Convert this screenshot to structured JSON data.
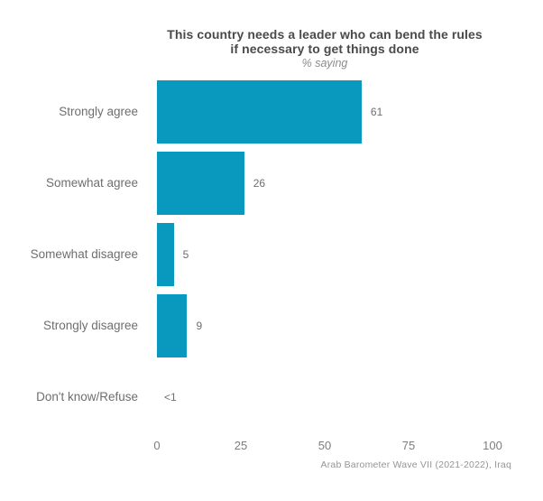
{
  "chart_data": {
    "type": "bar",
    "orientation": "horizontal",
    "title": "This country needs a leader who can bend the rules if necessary to get things done",
    "title_lines": [
      "This country needs a leader who can bend the rules",
      "if necessary to get things done"
    ],
    "subtitle": "% saying",
    "categories": [
      "Strongly agree",
      "Somewhat agree",
      "Somewhat disagree",
      "Strongly disagree",
      "Don't know/Refuse"
    ],
    "values": [
      61,
      26,
      5,
      9,
      0
    ],
    "value_labels": [
      "61",
      "26",
      "5",
      "9",
      "<1"
    ],
    "xlabel": "",
    "ylabel": "",
    "x_ticks": [
      "0",
      "25",
      "50",
      "75",
      "100"
    ],
    "x_tick_values": [
      0,
      25,
      50,
      75,
      100
    ],
    "xlim": [
      0,
      100
    ],
    "grid": false,
    "legend": false,
    "bar_color": "#0998BE",
    "title_color": "#4a4a4c",
    "label_color": "#6d6e71",
    "source": "Arab Barometer Wave VII (2021-2022), Iraq"
  }
}
